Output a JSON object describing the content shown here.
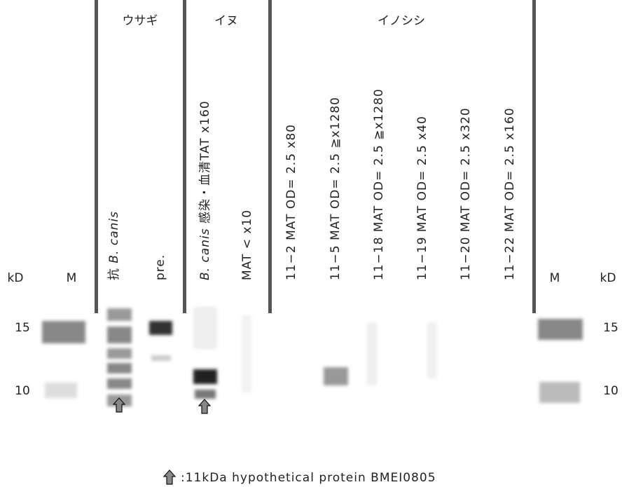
{
  "groups": [
    "ウサギ",
    "イヌ",
    "イノシシ"
  ],
  "axis": {
    "left": "kD",
    "right": "kD",
    "markers": [
      "15",
      "10"
    ]
  },
  "ladder_left": "M",
  "ladder_right": "M",
  "lanes": [
    [
      {
        "text": "抗 "
      },
      {
        "text": "B. canis",
        "italic": true
      }
    ],
    [
      {
        "text": "pre."
      }
    ],
    [
      {
        "text": "B. canis",
        "italic": true
      },
      {
        "text": " 感染・血清TAT x160"
      }
    ],
    [
      {
        "text": "MAT < x10"
      }
    ],
    [
      {
        "text": "11−2 MAT OD= 2.5  x80"
      }
    ],
    [
      {
        "text": "11−5 MAT OD= 2.5  ≧x1280"
      }
    ],
    [
      {
        "text": "11−18 MAT OD= 2.5  ≧x1280"
      }
    ],
    [
      {
        "text": "11−19 MAT OD= 2.5  x40"
      }
    ],
    [
      {
        "text": "11−20 MAT OD= 2.5  x320"
      }
    ],
    [
      {
        "text": "11−22 MAT OD= 2.5  x160"
      }
    ]
  ],
  "legend": ":11kDa hypothetical protein BMEI0805"
}
